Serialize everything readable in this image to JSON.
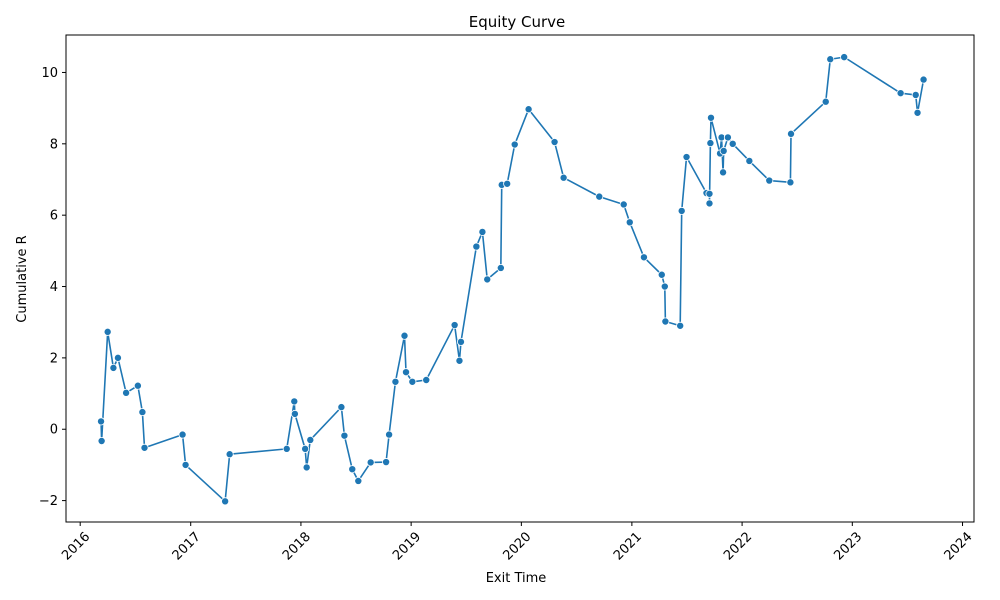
{
  "chart_data": {
    "type": "line",
    "title": "Equity Curve",
    "xlabel": "Exit Time",
    "ylabel": "Cumulative R",
    "x_ticks": [
      "2016",
      "2017",
      "2018",
      "2019",
      "2020",
      "2021",
      "2022",
      "2023",
      "2024"
    ],
    "y_ticks": [
      "−2",
      "0",
      "2",
      "4",
      "6",
      "8",
      "10"
    ],
    "xlim": [
      "2015-11-15",
      "2024-02-08"
    ],
    "ylim": [
      -2.6,
      11.05
    ],
    "grid": false,
    "legend": "none",
    "color": "#1f77b4",
    "series": [
      {
        "x": [
          "2016-03-10",
          "2016-03-12",
          "2016-04-01",
          "2016-04-20",
          "2016-05-05",
          "2016-06-01",
          "2016-07-10",
          "2016-07-25",
          "2016-08-01",
          "2016-12-05",
          "2016-12-15",
          "2017-04-25",
          "2017-05-10",
          "2017-11-15",
          "2017-12-10",
          "2017-12-12",
          "2018-01-15",
          "2018-01-20",
          "2018-02-01",
          "2018-05-15",
          "2018-05-25",
          "2018-06-20",
          "2018-07-10",
          "2018-08-20",
          "2018-10-10",
          "2018-10-20",
          "2018-11-10",
          "2018-12-10",
          "2018-12-15",
          "2019-01-05",
          "2019-02-20",
          "2019-05-25",
          "2019-06-10",
          "2019-06-15",
          "2019-08-05",
          "2019-08-25",
          "2019-09-10",
          "2019-10-25",
          "2019-10-28",
          "2019-11-15",
          "2019-12-10",
          "2020-01-25",
          "2020-04-20",
          "2020-05-20",
          "2020-09-15",
          "2020-12-05",
          "2020-12-25",
          "2021-02-10",
          "2021-04-10",
          "2021-04-20",
          "2021-04-22",
          "2021-06-10",
          "2021-06-15",
          "2021-07-01",
          "2021-09-05",
          "2021-09-15",
          "2021-09-15",
          "2021-09-18",
          "2021-09-20",
          "2021-10-20",
          "2021-10-25",
          "2021-10-30",
          "2021-11-01",
          "2021-11-15",
          "2021-12-01",
          "2022-01-25",
          "2022-04-01",
          "2022-06-10",
          "2022-06-12",
          "2022-10-05",
          "2022-10-20",
          "2022-12-05",
          "2023-06-10",
          "2023-07-30",
          "2023-08-05",
          "2023-08-25"
        ],
        "y": [
          0.22,
          -0.33,
          2.73,
          1.72,
          2.0,
          1.02,
          1.22,
          0.48,
          -0.52,
          -0.15,
          -1.0,
          -2.02,
          -0.7,
          -0.55,
          0.78,
          0.43,
          -0.55,
          -1.07,
          -0.3,
          0.62,
          -0.18,
          -1.12,
          -1.45,
          -0.93,
          -0.92,
          -0.15,
          1.33,
          2.62,
          1.6,
          1.33,
          1.38,
          2.92,
          1.92,
          2.45,
          5.12,
          5.53,
          4.2,
          4.52,
          6.85,
          6.88,
          7.98,
          8.97,
          8.05,
          7.05,
          6.52,
          6.3,
          5.8,
          4.82,
          4.33,
          4.0,
          3.02,
          2.9,
          6.12,
          7.63,
          6.62,
          6.6,
          6.33,
          8.02,
          8.73,
          7.73,
          8.18,
          7.2,
          7.8,
          8.18,
          8.0,
          7.52,
          6.97,
          6.92,
          8.28,
          9.18,
          10.37,
          10.43,
          9.42,
          9.37,
          8.87,
          9.8
        ]
      }
    ]
  }
}
